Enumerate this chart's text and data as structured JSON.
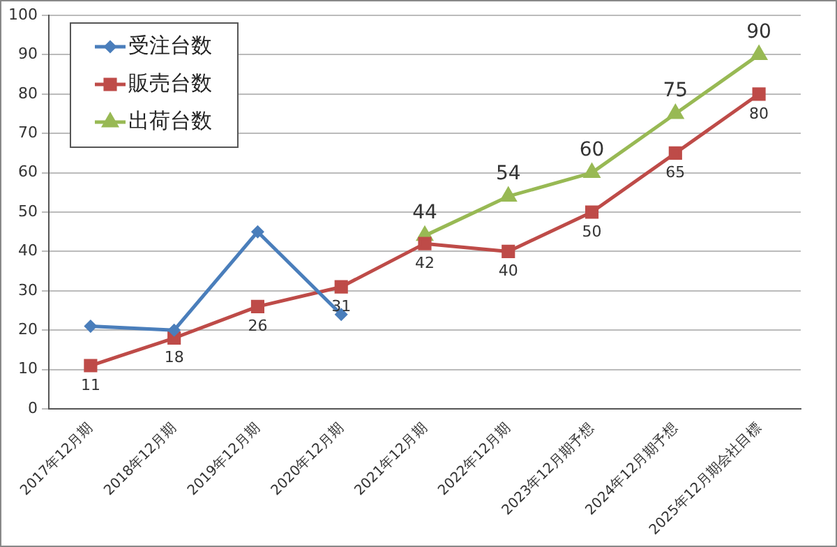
{
  "chart_data": {
    "type": "line",
    "categories": [
      "2017年12月期",
      "2018年12月期",
      "2019年12月期",
      "2020年12月期",
      "2021年12月期",
      "2022年12月期",
      "2023年12月期予想",
      "2024年12月期予想",
      "2025年12月期会社目標"
    ],
    "series": [
      {
        "name": "受注台数",
        "color": "#4a7ebb",
        "marker": "diamond",
        "values": [
          21,
          20,
          45,
          24,
          null,
          null,
          null,
          null,
          null
        ]
      },
      {
        "name": "販売台数",
        "color": "#be4b48",
        "marker": "square",
        "values": [
          11,
          18,
          26,
          31,
          42,
          40,
          50,
          65,
          80
        ],
        "value_labels": [
          "11",
          "18",
          "26",
          "31",
          "42",
          "40",
          "50",
          "65",
          "80"
        ]
      },
      {
        "name": "出荷台数",
        "color": "#98b954",
        "marker": "triangle",
        "values": [
          null,
          null,
          null,
          null,
          44,
          54,
          60,
          75,
          90
        ],
        "value_labels": [
          null,
          null,
          null,
          null,
          "44",
          "54",
          "60",
          "75",
          "90"
        ]
      }
    ],
    "ylim": [
      0,
      100
    ],
    "yticks": [
      0,
      10,
      20,
      30,
      40,
      50,
      60,
      70,
      80,
      90,
      100
    ],
    "grid": "y",
    "legend": "top left"
  }
}
